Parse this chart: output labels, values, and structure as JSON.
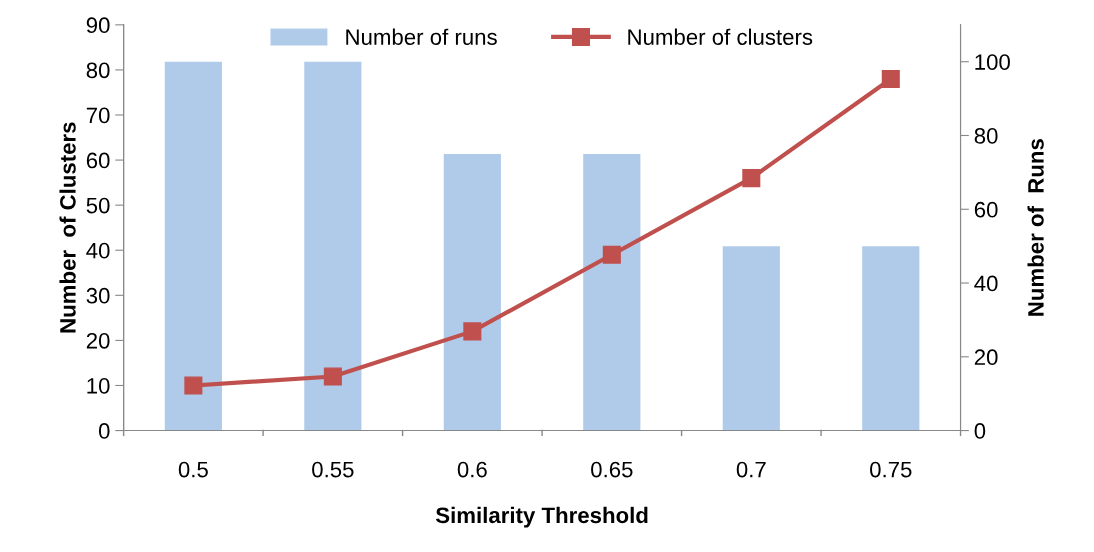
{
  "chart_data": {
    "type": "bar",
    "xlabel": "Similarity Threshold",
    "ylabel": "Number  of Clusters",
    "y2label": "Number of  Runs",
    "categories": [
      "0.5",
      "0.55",
      "0.6",
      "0.65",
      "0.7",
      "0.75"
    ],
    "series": [
      {
        "name": "Number of runs",
        "axis": "y2",
        "color": "#b0cbea",
        "values": [
          100,
          100,
          75,
          75,
          50,
          50
        ]
      },
      {
        "name": "Number of clusters",
        "type": "line",
        "color": "#c0504d",
        "marker": "square",
        "values": [
          10,
          12,
          22,
          39,
          56,
          78
        ]
      }
    ],
    "ylim": [
      0,
      90
    ],
    "yticks": [
      0,
      10,
      20,
      30,
      40,
      50,
      60,
      70,
      80,
      90
    ],
    "y2lim": [
      0,
      110
    ],
    "y2ticks": [
      0,
      20,
      40,
      60,
      80,
      100
    ],
    "grid": false,
    "legend": "top"
  }
}
